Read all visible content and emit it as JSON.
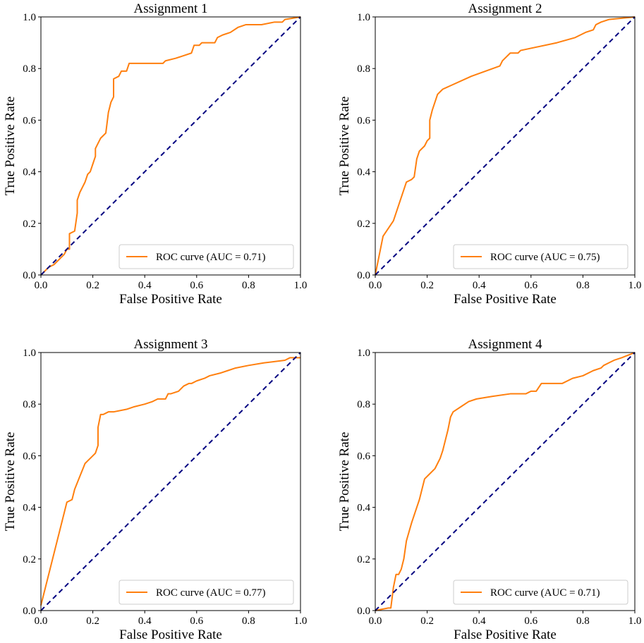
{
  "figure": {
    "colors": {
      "roc": "#ff7f0e",
      "chance": "#000080",
      "axis": "#000000",
      "legend_border": "#cccccc"
    }
  },
  "chart_data": [
    {
      "type": "line",
      "title": "Assignment 1",
      "xlabel": "False Positive Rate",
      "ylabel": "True Positive Rate",
      "xlim": [
        0.0,
        1.0
      ],
      "ylim": [
        0.0,
        1.0
      ],
      "xticks": [
        "0.0",
        "0.2",
        "0.4",
        "0.6",
        "0.8",
        "1.0"
      ],
      "yticks": [
        "0.0",
        "0.2",
        "0.4",
        "0.6",
        "0.8",
        "1.0"
      ],
      "legend": "ROC curve (AUC = 0.71)",
      "legend_position": "lower-right",
      "series": [
        {
          "name": "ROC curve (AUC = 0.71)",
          "style": "solid",
          "x": [
            0,
            0.03,
            0.05,
            0.07,
            0.09,
            0.1,
            0.11,
            0.11,
            0.13,
            0.14,
            0.14,
            0.15,
            0.16,
            0.17,
            0.18,
            0.19,
            0.2,
            0.21,
            0.21,
            0.22,
            0.23,
            0.24,
            0.25,
            0.26,
            0.27,
            0.28,
            0.28,
            0.3,
            0.31,
            0.33,
            0.34,
            0.36,
            0.47,
            0.48,
            0.52,
            0.55,
            0.58,
            0.59,
            0.61,
            0.62,
            0.67,
            0.68,
            0.7,
            0.73,
            0.76,
            0.79,
            0.85,
            0.9,
            0.93,
            0.94,
            1.0
          ],
          "y": [
            0,
            0.03,
            0.04,
            0.06,
            0.08,
            0.1,
            0.1,
            0.16,
            0.17,
            0.24,
            0.29,
            0.32,
            0.34,
            0.36,
            0.39,
            0.4,
            0.43,
            0.46,
            0.49,
            0.51,
            0.53,
            0.54,
            0.55,
            0.63,
            0.67,
            0.69,
            0.76,
            0.77,
            0.79,
            0.79,
            0.82,
            0.82,
            0.82,
            0.83,
            0.84,
            0.85,
            0.86,
            0.89,
            0.89,
            0.9,
            0.9,
            0.92,
            0.93,
            0.94,
            0.96,
            0.97,
            0.97,
            0.98,
            0.98,
            0.99,
            1.0
          ]
        },
        {
          "name": "chance",
          "style": "dashed",
          "x": [
            0,
            1
          ],
          "y": [
            0,
            1
          ]
        }
      ]
    },
    {
      "type": "line",
      "title": "Assignment 2",
      "xlabel": "False Positive Rate",
      "ylabel": "True Positive Rate",
      "xlim": [
        0.0,
        1.0
      ],
      "ylim": [
        0.0,
        1.0
      ],
      "xticks": [
        "0.0",
        "0.2",
        "0.4",
        "0.6",
        "0.8",
        "1.0"
      ],
      "yticks": [
        "0.0",
        "0.2",
        "0.4",
        "0.6",
        "0.8",
        "1.0"
      ],
      "legend": "ROC curve (AUC = 0.75)",
      "legend_position": "lower-right",
      "series": [
        {
          "name": "ROC curve (AUC = 0.75)",
          "style": "solid",
          "x": [
            0,
            0.03,
            0.07,
            0.12,
            0.14,
            0.15,
            0.16,
            0.17,
            0.19,
            0.2,
            0.21,
            0.21,
            0.22,
            0.23,
            0.24,
            0.25,
            0.26,
            0.37,
            0.48,
            0.49,
            0.52,
            0.55,
            0.56,
            0.7,
            0.77,
            0.81,
            0.84,
            0.85,
            0.87,
            0.9,
            1.0
          ],
          "y": [
            0,
            0.15,
            0.21,
            0.36,
            0.37,
            0.38,
            0.45,
            0.48,
            0.5,
            0.52,
            0.53,
            0.6,
            0.64,
            0.67,
            0.7,
            0.71,
            0.72,
            0.77,
            0.81,
            0.83,
            0.86,
            0.86,
            0.87,
            0.9,
            0.92,
            0.94,
            0.95,
            0.97,
            0.98,
            0.99,
            1.0
          ]
        },
        {
          "name": "chance",
          "style": "dashed",
          "x": [
            0,
            1
          ],
          "y": [
            0,
            1
          ]
        }
      ]
    },
    {
      "type": "line",
      "title": "Assignment 3",
      "xlabel": "False Positive Rate",
      "ylabel": "True Positive Rate",
      "xlim": [
        0.0,
        1.0
      ],
      "ylim": [
        0.0,
        1.0
      ],
      "xticks": [
        "0.0",
        "0.2",
        "0.4",
        "0.6",
        "0.8",
        "1.0"
      ],
      "yticks": [
        "0.0",
        "0.2",
        "0.4",
        "0.6",
        "0.8",
        "1.0"
      ],
      "legend": "ROC curve (AUC = 0.77)",
      "legend_position": "lower-right",
      "series": [
        {
          "name": "ROC curve (AUC = 0.77)",
          "style": "solid",
          "x": [
            0,
            0.02,
            0.04,
            0.07,
            0.1,
            0.12,
            0.13,
            0.15,
            0.17,
            0.18,
            0.2,
            0.21,
            0.22,
            0.22,
            0.23,
            0.24,
            0.26,
            0.28,
            0.33,
            0.36,
            0.4,
            0.43,
            0.45,
            0.48,
            0.49,
            0.5,
            0.53,
            0.55,
            0.57,
            0.58,
            0.6,
            0.63,
            0.65,
            0.69,
            0.72,
            0.75,
            0.8,
            0.86,
            0.94,
            0.96,
            1.0
          ],
          "y": [
            0.02,
            0.1,
            0.18,
            0.3,
            0.42,
            0.43,
            0.47,
            0.52,
            0.57,
            0.58,
            0.6,
            0.61,
            0.64,
            0.71,
            0.76,
            0.76,
            0.77,
            0.77,
            0.78,
            0.79,
            0.8,
            0.81,
            0.82,
            0.82,
            0.84,
            0.84,
            0.85,
            0.87,
            0.88,
            0.88,
            0.89,
            0.9,
            0.91,
            0.92,
            0.93,
            0.94,
            0.95,
            0.96,
            0.97,
            0.98,
            0.98
          ]
        },
        {
          "name": "chance",
          "style": "dashed",
          "x": [
            0,
            1
          ],
          "y": [
            0,
            1
          ]
        }
      ]
    },
    {
      "type": "line",
      "title": "Assignment 4",
      "xlabel": "False Positive Rate",
      "ylabel": "True Positive Rate",
      "xlim": [
        0.0,
        1.0
      ],
      "ylim": [
        0.0,
        1.0
      ],
      "xticks": [
        "0.0",
        "0.2",
        "0.4",
        "0.6",
        "0.8",
        "1.0"
      ],
      "yticks": [
        "0.0",
        "0.2",
        "0.4",
        "0.6",
        "0.8",
        "1.0"
      ],
      "legend": "ROC curve (AUC = 0.71)",
      "legend_position": "lower-right",
      "series": [
        {
          "name": "ROC curve (AUC = 0.71)",
          "style": "solid",
          "x": [
            0,
            0.05,
            0.06,
            0.07,
            0.08,
            0.09,
            0.1,
            0.11,
            0.12,
            0.14,
            0.16,
            0.17,
            0.18,
            0.19,
            0.21,
            0.23,
            0.24,
            0.25,
            0.26,
            0.27,
            0.28,
            0.29,
            0.3,
            0.33,
            0.36,
            0.39,
            0.45,
            0.52,
            0.58,
            0.6,
            0.62,
            0.64,
            0.72,
            0.76,
            0.8,
            0.84,
            0.87,
            0.88,
            0.9,
            0.92,
            0.95,
            1.0
          ],
          "y": [
            0,
            0.01,
            0.01,
            0.09,
            0.14,
            0.14,
            0.16,
            0.2,
            0.27,
            0.34,
            0.4,
            0.43,
            0.47,
            0.51,
            0.53,
            0.55,
            0.57,
            0.59,
            0.62,
            0.66,
            0.7,
            0.75,
            0.77,
            0.79,
            0.81,
            0.82,
            0.83,
            0.84,
            0.84,
            0.85,
            0.85,
            0.88,
            0.88,
            0.9,
            0.91,
            0.93,
            0.94,
            0.95,
            0.96,
            0.97,
            0.98,
            1.0
          ]
        },
        {
          "name": "chance",
          "style": "dashed",
          "x": [
            0,
            1
          ],
          "y": [
            0,
            1
          ]
        }
      ]
    }
  ]
}
